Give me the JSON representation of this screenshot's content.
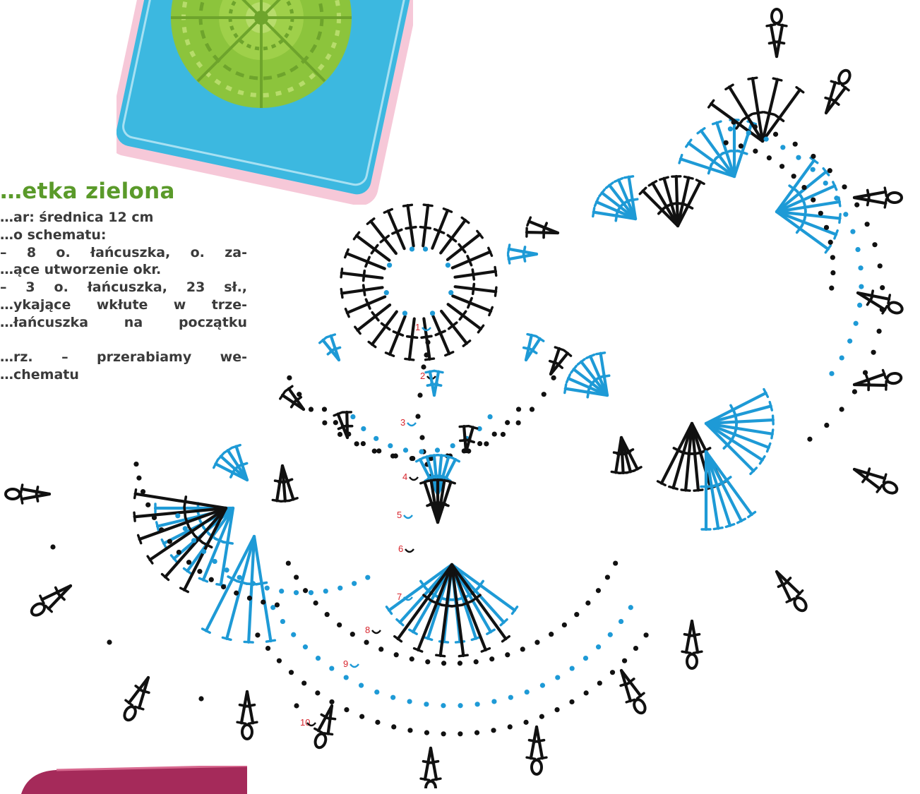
{
  "title": "…etka zielona",
  "lines": [
    "…ar: średnica 12 cm",
    "…o schematu:",
    "– 8 o. łańcuszka, o. za-",
    "…ące utworzenie okr.",
    "– 3 o. łańcuszka, 23 sł.,",
    "…ykające wkłute w trze-",
    "…łańcuszka na początku",
    "",
    "…rz. – przerabiamy we-",
    "…chematu"
  ],
  "round_labels": [
    "1",
    "2",
    "3",
    "4",
    "5",
    "6",
    "7",
    "8",
    "9",
    "10"
  ],
  "colors": {
    "black_stitch": "#111111",
    "blue_stitch": "#1e9ad6",
    "round_label": "#d8262e",
    "title": "#5a9a2a",
    "photo_bg": "#3cb8e0",
    "doily": "#8cc43c",
    "pink_frame": "#f6c8d8",
    "bottom_strip": "#a52a5a"
  }
}
